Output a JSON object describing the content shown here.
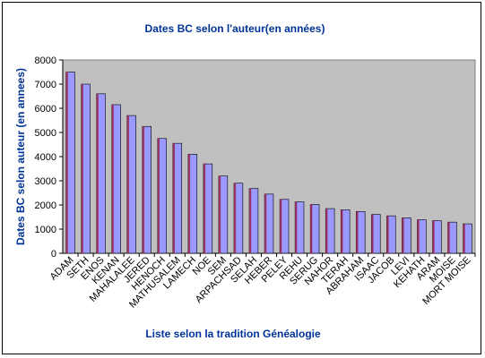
{
  "chart_data": {
    "type": "bar",
    "title": "Dates BC selon l'auteur(en années)",
    "xlabel": "Liste selon la tradition Généalogie",
    "ylabel": "Dates BC selon auteur (en annees)",
    "ylim": [
      0,
      8000
    ],
    "yticks": [
      0,
      1000,
      2000,
      3000,
      4000,
      5000,
      6000,
      7000,
      8000
    ],
    "grid": false,
    "legend": "none",
    "plot_background": "#c0c0c0",
    "bar_color": "#9999ff",
    "bar_dark_color": "#993366",
    "categories": [
      "ADAM",
      "SETH",
      "ENOS",
      "KENAN",
      "MAHALALEE",
      "JERED",
      "HENOCH",
      "MATHUSALEM",
      "LAMECH",
      "NOE",
      "SEM",
      "ARPACHSAD",
      "SELAH",
      "HEBER",
      "PELEY",
      "REHU",
      "SERUG",
      "NAHOR",
      "TERAH",
      "ABRAHAM",
      "ISAAC",
      "JACOB",
      "LEVI",
      "KEHATH",
      "ARAM",
      "MOISE",
      "MORT MOISE"
    ],
    "values": [
      7500,
      7000,
      6600,
      6150,
      5700,
      5250,
      4750,
      4550,
      4100,
      3700,
      3200,
      2900,
      2680,
      2450,
      2230,
      2130,
      2020,
      1850,
      1800,
      1730,
      1610,
      1550,
      1470,
      1390,
      1350,
      1290,
      1220
    ]
  }
}
